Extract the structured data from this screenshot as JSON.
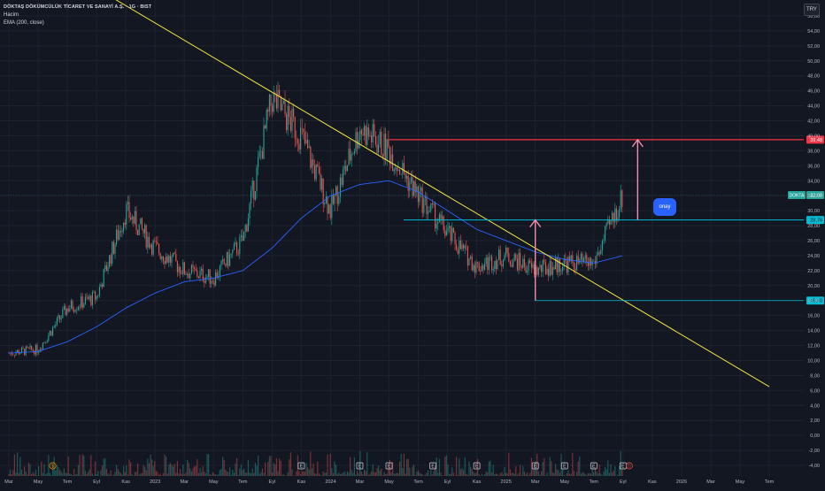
{
  "legend": {
    "title": "DÖKTAŞ DÖKÜMCÜLÜK TİCARET VE SANAYİ A.Ş. · 1G · BIST",
    "volume": "Hacim",
    "ema": "EMA (200, close)"
  },
  "currency": "TRY",
  "badge_text": "onay",
  "ticker": "DOKTA",
  "colors": {
    "background": "#131722",
    "up": "#26a69a",
    "down": "#ef5350",
    "trendline": "#f0e442",
    "ema": "#2962ff",
    "resistance": "#f23645",
    "support": "#00bcd4",
    "arrow": "#f48fb1"
  },
  "price_axis": {
    "ticks": [
      "56,00",
      "54,00",
      "52,00",
      "50,00",
      "48,00",
      "46,00",
      "44,00",
      "42,00",
      "40,00",
      "38,00",
      "36,00",
      "34,00",
      "32,00",
      "30,00",
      "28,00",
      "26,00",
      "24,00",
      "22,00",
      "20,00",
      "18,00",
      "16,00",
      "14,00",
      "12,00",
      "10,00",
      "8,00",
      "6,00",
      "4,00",
      "2,00",
      "0,00",
      "-2,00",
      "-4,00"
    ]
  },
  "time_axis": {
    "labels": [
      "Mar",
      "May",
      "Tem",
      "Eyl",
      "Kas",
      "2023",
      "Mar",
      "May",
      "Tem",
      "Eyl",
      "Kas",
      "2024",
      "Mar",
      "May",
      "Tem",
      "Eyl",
      "Kas",
      "2025",
      "Mar",
      "May",
      "Tem",
      "Eyl",
      "Kas",
      "2026",
      "Mar",
      "May",
      "Tem"
    ]
  },
  "price_labels": {
    "resistance": "39,48",
    "last": "32,08",
    "support_upper": "28,76",
    "support_lower": "18,00"
  },
  "event_markers": [
    "$",
    "E",
    "E",
    "E",
    "E",
    "E",
    "E",
    "E",
    "E",
    "E",
    "D"
  ],
  "chart_data": {
    "type": "line",
    "title": "DÖKTAŞ DÖKÜMCÜLÜK TİCARET VE SANAYİ A.Ş. · 1G · BIST",
    "y_unit": "TRY",
    "ylim": [
      -4,
      56
    ],
    "x": [
      "2022-03",
      "2022-05",
      "2022-07",
      "2022-09",
      "2022-11",
      "2023-01",
      "2023-03",
      "2023-05",
      "2023-07",
      "2023-09",
      "2023-11",
      "2024-01",
      "2024-03",
      "2024-05",
      "2024-07",
      "2024-09",
      "2024-11",
      "2025-01",
      "2025-03",
      "2025-05",
      "2025-07",
      "2025-09"
    ],
    "series": [
      {
        "name": "DOKTA",
        "values": [
          11.0,
          11.5,
          17.0,
          18.5,
          30.0,
          25.0,
          22.0,
          21.0,
          26.0,
          45.0,
          40.0,
          30.0,
          41.0,
          38.0,
          32.0,
          27.0,
          22.5,
          24.0,
          22.0,
          23.0,
          23.0,
          32.08
        ]
      },
      {
        "name": "EMA (200, close)",
        "values": [
          11.0,
          11.2,
          12.5,
          14.5,
          17.0,
          19.0,
          20.5,
          21.0,
          22.0,
          25.0,
          29.0,
          32.0,
          33.5,
          34.0,
          32.5,
          30.0,
          27.5,
          26.0,
          24.5,
          23.5,
          23.0,
          24.0
        ]
      }
    ],
    "levels": [
      39.48,
      28.76,
      18.0
    ],
    "trendline": {
      "from": {
        "x": "2022-07",
        "y": 62.0
      },
      "to": {
        "x": "2026-07",
        "y": 6.5
      }
    },
    "grid": true
  }
}
